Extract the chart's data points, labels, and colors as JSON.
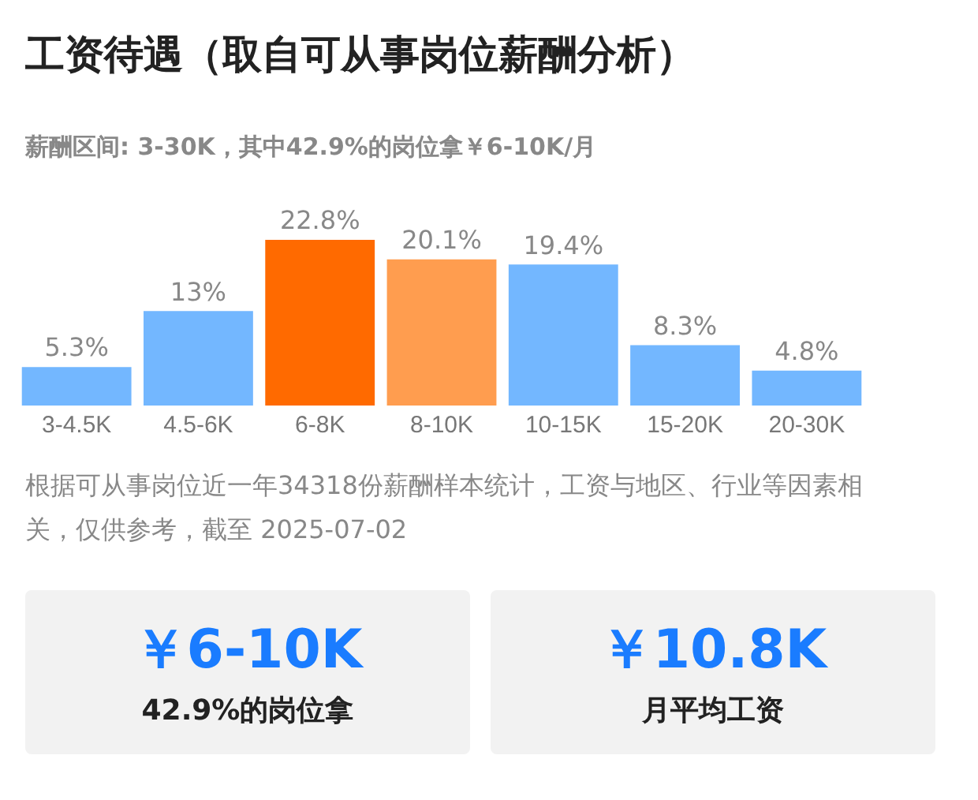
{
  "chart_data": {
    "type": "bar",
    "title": "工资待遇（取自可从事岗位薪酬分析）",
    "subtitle": "薪酬区间: 3-30K，其中42.9%的岗位拿￥6-10K/月",
    "categories": [
      "3-4.5K",
      "4.5-6K",
      "6-8K",
      "8-10K",
      "10-15K",
      "15-20K",
      "20-30K"
    ],
    "values": [
      5.3,
      13,
      22.8,
      20.1,
      19.4,
      8.3,
      4.8
    ],
    "colors": [
      "#73b7ff",
      "#73b7ff",
      "#ff6a00",
      "#ff9d4f",
      "#73b7ff",
      "#73b7ff",
      "#73b7ff"
    ],
    "value_labels": [
      "5.3%",
      "13%",
      "22.8%",
      "20.1%",
      "19.4%",
      "8.3%",
      "4.8%"
    ],
    "grid": false,
    "legend": false,
    "annotations": [
      "根据可从事岗位近一年34318份薪酬样本统计，工资与地区、行业等因素相关，仅供参考，截至 2025-07-02",
      "￥6-10K",
      "42.9%的岗位拿",
      "￥10.8K",
      "月平均工资"
    ]
  }
}
